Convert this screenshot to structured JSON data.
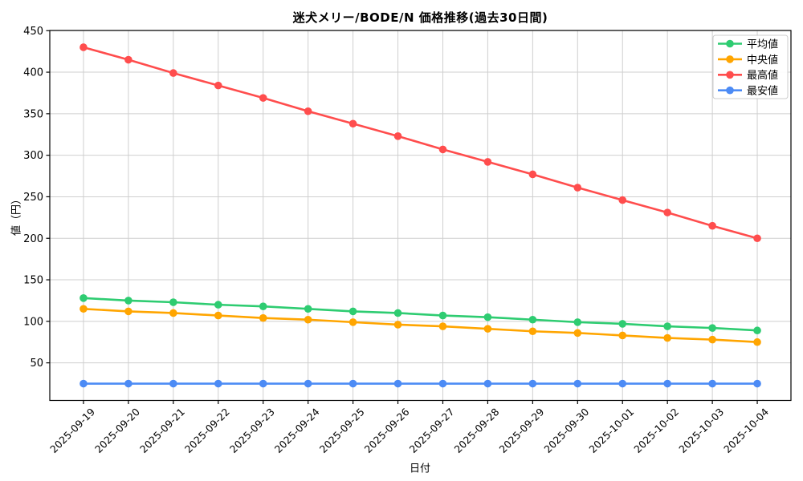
{
  "chart_data": {
    "type": "line",
    "title": "迷犬メリー/BODE/N 価格推移(過去30日間)",
    "xlabel": "日付",
    "ylabel": "値（円）",
    "categories": [
      "2025-09-19",
      "2025-09-20",
      "2025-09-21",
      "2025-09-22",
      "2025-09-23",
      "2025-09-24",
      "2025-09-25",
      "2025-09-26",
      "2025-09-27",
      "2025-09-28",
      "2025-09-29",
      "2025-09-30",
      "2025-10-01",
      "2025-10-02",
      "2025-10-03",
      "2025-10-04"
    ],
    "series": [
      {
        "name": "平均値",
        "color": "#2ecc71",
        "values": [
          128,
          125,
          123,
          120,
          118,
          115,
          112,
          110,
          107,
          105,
          102,
          99,
          97,
          94,
          92,
          89
        ]
      },
      {
        "name": "中央値",
        "color": "#ffa500",
        "values": [
          115,
          112,
          110,
          107,
          104,
          102,
          99,
          96,
          94,
          91,
          88,
          86,
          83,
          80,
          78,
          75
        ]
      },
      {
        "name": "最高値",
        "color": "#ff4d4d",
        "values": [
          430,
          415,
          399,
          384,
          369,
          353,
          338,
          323,
          307,
          292,
          277,
          261,
          246,
          231,
          215,
          200
        ]
      },
      {
        "name": "最安値",
        "color": "#4c8bf5",
        "values": [
          25,
          25,
          25,
          25,
          25,
          25,
          25,
          25,
          25,
          25,
          25,
          25,
          25,
          25,
          25,
          25
        ]
      }
    ],
    "yticks": [
      50,
      100,
      150,
      200,
      250,
      300,
      350,
      400,
      450
    ],
    "ylim": [
      4.75,
      450.25
    ],
    "grid": true,
    "legend_position": "upper right",
    "grid_color": "#cfcfcf",
    "spine_color": "#000000"
  }
}
